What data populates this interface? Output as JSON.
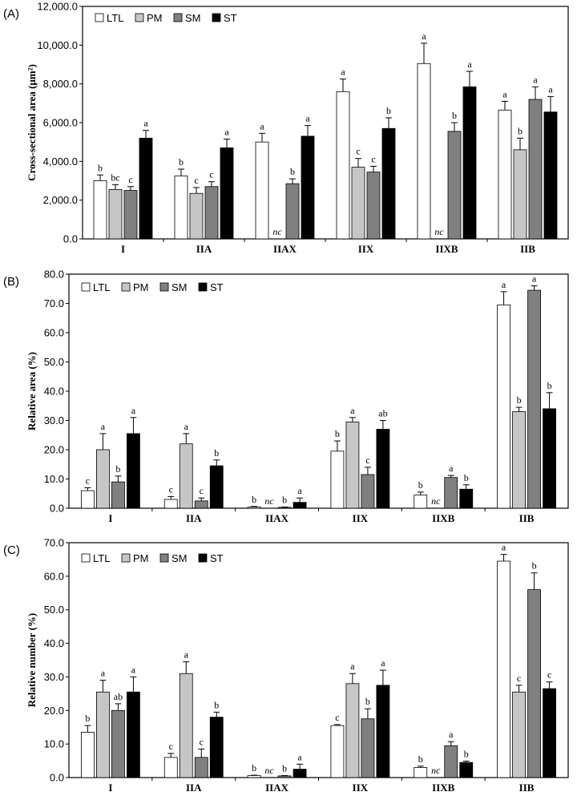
{
  "colors": {
    "LTL": "#ffffff",
    "PM": "#c6c6c6",
    "SM": "#808080",
    "ST": "#000000"
  },
  "series_names": [
    "LTL",
    "PM",
    "SM",
    "ST"
  ],
  "chart_data": [
    {
      "type": "bar",
      "panel_label": "(A)",
      "ylabel": "Cross-sectional area (μm²)",
      "ylim": [
        0,
        12000
      ],
      "yticks": [
        0,
        2000,
        4000,
        6000,
        8000,
        10000,
        12000
      ],
      "ytick_labels": [
        "0.0",
        "2,000.0",
        "4,000.0",
        "6,000.0",
        "8,000.0",
        "10,000.0",
        "12,000.0"
      ],
      "categories": [
        "I",
        "IIA",
        "IIAX",
        "IIX",
        "IIXB",
        "IIB"
      ],
      "series": [
        {
          "name": "LTL",
          "values": [
            3000,
            3250,
            5000,
            7600,
            9050,
            6650
          ],
          "errors": [
            300,
            350,
            450,
            650,
            1050,
            450
          ],
          "labels": [
            "b",
            "b",
            "a",
            "a",
            "a",
            "a"
          ]
        },
        {
          "name": "PM",
          "values": [
            2550,
            2350,
            null,
            3700,
            null,
            4600
          ],
          "errors": [
            250,
            300,
            null,
            450,
            null,
            600
          ],
          "labels": [
            "bc",
            "c",
            "nc",
            "c",
            "nc",
            "b"
          ]
        },
        {
          "name": "SM",
          "values": [
            2500,
            2700,
            2850,
            3450,
            5550,
            7200
          ],
          "errors": [
            200,
            250,
            250,
            300,
            450,
            650
          ],
          "labels": [
            "c",
            "c",
            "b",
            "c",
            "b",
            "a"
          ]
        },
        {
          "name": "ST",
          "values": [
            5200,
            4700,
            5300,
            5700,
            7850,
            6550
          ],
          "errors": [
            400,
            450,
            550,
            550,
            800,
            800
          ],
          "labels": [
            "a",
            "a",
            "a",
            "b",
            "a",
            "a"
          ]
        }
      ]
    },
    {
      "type": "bar",
      "panel_label": "(B)",
      "ylabel": "Relative area (%)",
      "ylim": [
        0,
        80
      ],
      "yticks": [
        0,
        10,
        20,
        30,
        40,
        50,
        60,
        70,
        80
      ],
      "ytick_labels": [
        "0.0",
        "10.0",
        "20.0",
        "30.0",
        "40.0",
        "50.0",
        "60.0",
        "70.0",
        "80.0"
      ],
      "categories": [
        "I",
        "IIA",
        "IIAX",
        "IIX",
        "IIXB",
        "IIB"
      ],
      "series": [
        {
          "name": "LTL",
          "values": [
            6,
            3,
            0.4,
            19.5,
            4.5,
            69.5
          ],
          "errors": [
            1,
            1,
            0.2,
            3.5,
            1,
            4.5
          ],
          "labels": [
            "c",
            "c",
            "b",
            "b",
            "b",
            "a"
          ]
        },
        {
          "name": "PM",
          "values": [
            20,
            22,
            null,
            29.5,
            null,
            33
          ],
          "errors": [
            5.5,
            3.5,
            null,
            1.5,
            null,
            1.5
          ],
          "labels": [
            "a",
            "a",
            "nc",
            "a",
            "nc",
            "b"
          ]
        },
        {
          "name": "SM",
          "values": [
            9,
            2.5,
            0.3,
            11.5,
            10.5,
            74.5
          ],
          "errors": [
            2,
            1,
            0.1,
            2.5,
            0.7,
            1.5
          ],
          "labels": [
            "b",
            "c",
            "b",
            "c",
            "a",
            "a"
          ]
        },
        {
          "name": "ST",
          "values": [
            25.5,
            14.5,
            2,
            27,
            6.5,
            34
          ],
          "errors": [
            5.5,
            2,
            1.5,
            3,
            1.5,
            5.5
          ],
          "labels": [
            "a",
            "b",
            "a",
            "ab",
            "b",
            "b"
          ]
        }
      ]
    },
    {
      "type": "bar",
      "panel_label": "(C)",
      "ylabel": "Relative number (%)",
      "ylim": [
        0,
        70
      ],
      "yticks": [
        0,
        10,
        20,
        30,
        40,
        50,
        60,
        70
      ],
      "ytick_labels": [
        "0.0",
        "10.0",
        "20.0",
        "30.0",
        "40.0",
        "50.0",
        "60.0",
        "70.0"
      ],
      "categories": [
        "I",
        "IIA",
        "IIAX",
        "IIX",
        "IIXB",
        "IIB"
      ],
      "series": [
        {
          "name": "LTL",
          "values": [
            13.5,
            6,
            0.6,
            15.5,
            3,
            64.5
          ],
          "errors": [
            2,
            1.2,
            0.1,
            0.3,
            0.4,
            2
          ],
          "labels": [
            "b",
            "c",
            "b",
            "c",
            "b",
            "a"
          ]
        },
        {
          "name": "PM",
          "values": [
            25.5,
            31,
            null,
            28,
            null,
            25.5
          ],
          "errors": [
            3.5,
            3.5,
            null,
            3,
            null,
            2
          ],
          "labels": [
            "a",
            "a",
            "nc",
            "a",
            "nc",
            "c"
          ]
        },
        {
          "name": "SM",
          "values": [
            20,
            6,
            0.5,
            17.5,
            9.5,
            56
          ],
          "errors": [
            2,
            2.5,
            0.1,
            3,
            1.2,
            5
          ],
          "labels": [
            "ab",
            "c",
            "b",
            "b",
            "a",
            "b"
          ]
        },
        {
          "name": "ST",
          "values": [
            25.5,
            18,
            2.5,
            27.5,
            4.5,
            26.5
          ],
          "errors": [
            4.5,
            1.5,
            1.5,
            4.5,
            0.4,
            2
          ],
          "labels": [
            "a",
            "b",
            "a",
            "a",
            "b",
            "c"
          ]
        }
      ]
    }
  ]
}
